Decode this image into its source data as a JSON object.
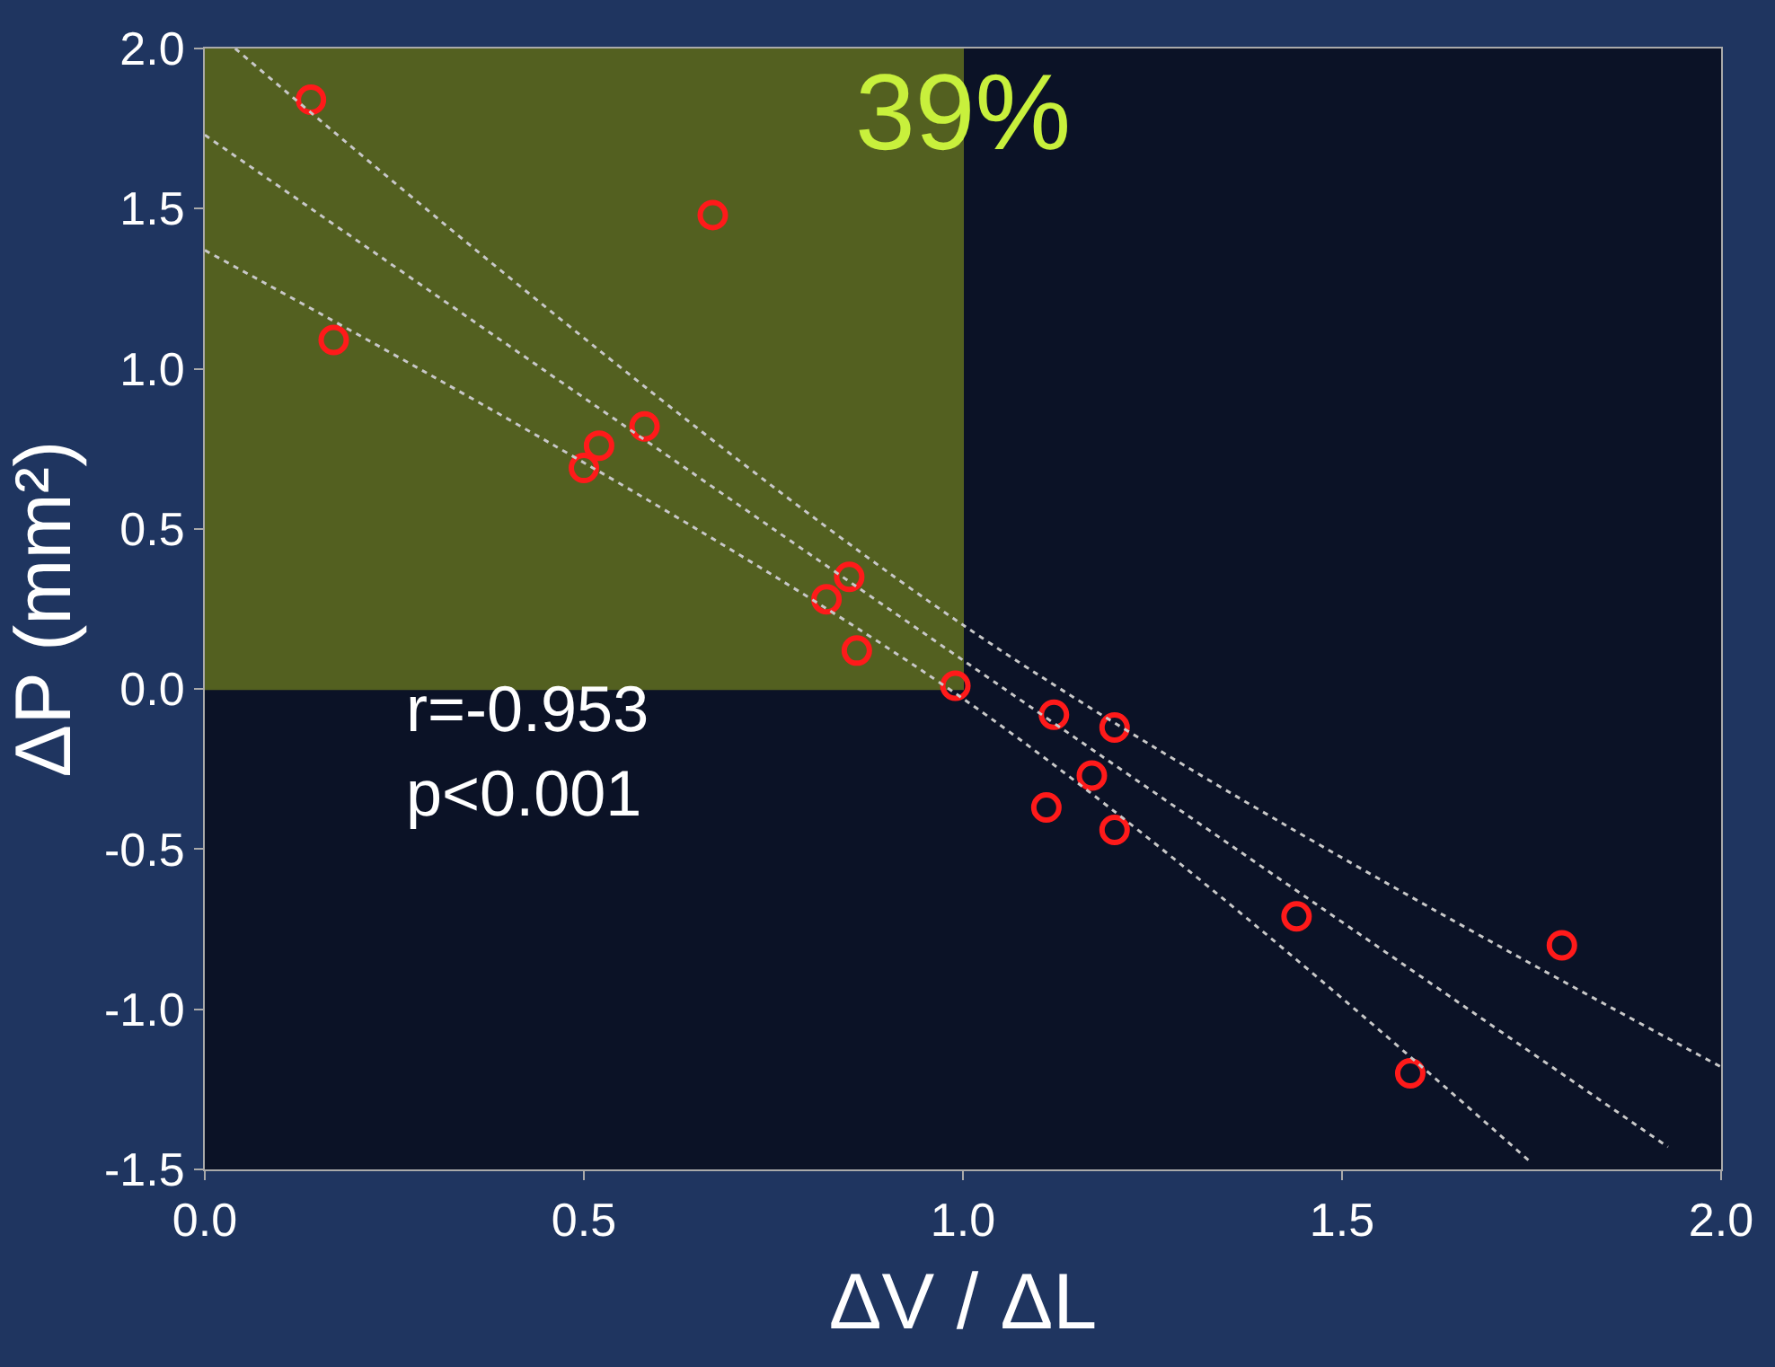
{
  "chart_data": {
    "type": "scatter",
    "xlabel": "ΔV / ΔL",
    "ylabel": "ΔP (mm²)",
    "xlim": [
      0,
      2
    ],
    "ylim": [
      -1.5,
      2
    ],
    "xticks": [
      {
        "value": 0,
        "label": "0.0"
      },
      {
        "value": 0.5,
        "label": "0.5"
      },
      {
        "value": 1,
        "label": "1.0"
      },
      {
        "value": 1.5,
        "label": "1.5"
      },
      {
        "value": 2,
        "label": "2.0"
      }
    ],
    "yticks": [
      {
        "value": -1.5,
        "label": "-1.5"
      },
      {
        "value": -1,
        "label": "-1.0"
      },
      {
        "value": -0.5,
        "label": "-0.5"
      },
      {
        "value": 0,
        "label": "0.0"
      },
      {
        "value": 0.5,
        "label": "0.5"
      },
      {
        "value": 1,
        "label": "1.0"
      },
      {
        "value": 1.5,
        "label": "1.5"
      },
      {
        "value": 2,
        "label": "2.0"
      }
    ],
    "grid": false,
    "marker": "circle",
    "series": [
      {
        "color": "#ff1a1a",
        "x": [
          0.14,
          0.17,
          0.67,
          0.58,
          0.52,
          0.5,
          0.85,
          0.82,
          0.86,
          0.99,
          1.12,
          1.2,
          1.17,
          1.11,
          1.2,
          1.44,
          1.79,
          1.59
        ],
        "values": [
          1.84,
          1.09,
          1.48,
          0.82,
          0.76,
          0.69,
          0.35,
          0.28,
          0.12,
          0.01,
          -0.08,
          -0.12,
          -0.27,
          -0.37,
          -0.44,
          -0.71,
          -0.8,
          -1.2
        ]
      },
      {
        "type": "line",
        "marker": "none",
        "line_style": "dotted",
        "color": "#c8c8c8",
        "x": [
          0,
          1,
          1.93
        ],
        "values": [
          1.73,
          0.09,
          -1.43
        ]
      },
      {
        "type": "line",
        "marker": "none",
        "line_style": "dotted",
        "color": "#c8c8c8",
        "x": [
          0.04,
          1,
          2
        ],
        "values": [
          2.0,
          0.2,
          -1.18
        ]
      },
      {
        "type": "line",
        "marker": "none",
        "line_style": "dotted",
        "color": "#c8c8c8",
        "x": [
          0,
          1,
          1.75
        ],
        "values": [
          1.37,
          -0.03,
          -1.48
        ]
      }
    ],
    "bands": [
      {
        "axis": "x",
        "from": 0,
        "to": 1,
        "label": "39%",
        "color": "#6b7a1e"
      }
    ],
    "annotations": [
      "r=-0.953\np<0.001"
    ]
  }
}
